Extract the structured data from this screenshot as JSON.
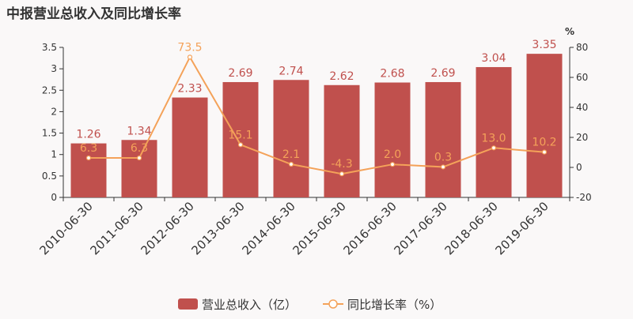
{
  "chart_data": {
    "type": "bar",
    "title": "中报营业总收入及同比增长率",
    "categories": [
      "2010-06-30",
      "2011-06-30",
      "2012-06-30",
      "2013-06-30",
      "2014-06-30",
      "2015-06-30",
      "2016-06-30",
      "2017-06-30",
      "2018-06-30",
      "2019-06-30"
    ],
    "series": [
      {
        "name": "营业总收入（亿）",
        "type": "bar",
        "axis": "left",
        "values": [
          1.26,
          1.34,
          2.33,
          2.69,
          2.74,
          2.62,
          2.68,
          2.69,
          3.04,
          3.35
        ],
        "labels": [
          "1.26",
          "1.34",
          "2.33",
          "2.69",
          "2.74",
          "2.62",
          "2.68",
          "2.69",
          "3.04",
          "3.35"
        ]
      },
      {
        "name": "同比增长率（%）",
        "type": "line",
        "axis": "right",
        "values": [
          6.3,
          6.3,
          73.5,
          15.1,
          2.1,
          -4.3,
          2.0,
          0.3,
          13.0,
          10.2
        ],
        "labels": [
          "6.3",
          "6.3",
          "73.5",
          "15.1",
          "2.1",
          "-4.3",
          "2.0",
          "0.3",
          "13.0",
          "10.2"
        ]
      }
    ],
    "y_left": {
      "range": [
        0,
        3.5
      ],
      "ticks": [
        "0",
        "0.5",
        "1",
        "1.5",
        "2",
        "2.5",
        "3",
        "3.5"
      ],
      "tick_values": [
        0,
        0.5,
        1,
        1.5,
        2,
        2.5,
        3,
        3.5
      ]
    },
    "y_right": {
      "label": "%",
      "range": [
        -20,
        80
      ],
      "ticks": [
        "-20",
        "0",
        "20",
        "40",
        "60",
        "80"
      ],
      "tick_values": [
        -20,
        0,
        20,
        40,
        60,
        80
      ]
    },
    "grid": false,
    "legend_position": "bottom",
    "colors": {
      "bar": "#c0504d",
      "line": "#f4a259",
      "axis": "#333333",
      "bar_label": "#c0504d",
      "line_label": "#f4a259"
    }
  }
}
